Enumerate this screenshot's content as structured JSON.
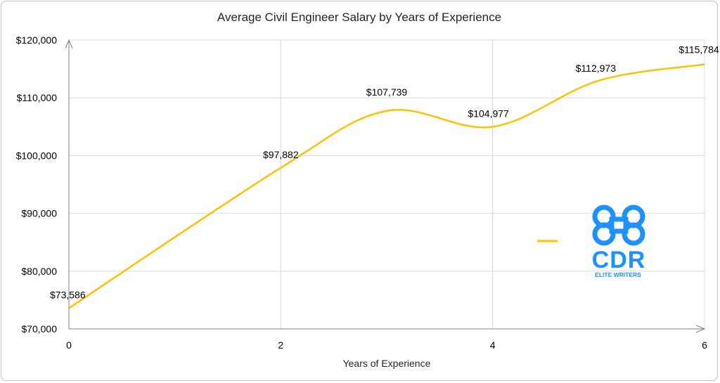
{
  "chart_data": {
    "type": "line",
    "title": "Average Civil Engineer Salary by Years of Experience",
    "xlabel": "Years of Experience",
    "ylabel": "",
    "xlim": [
      0,
      6
    ],
    "ylim": [
      70000,
      120000
    ],
    "x_ticks": [
      0,
      2,
      4,
      6
    ],
    "y_ticks": [
      70000,
      80000,
      90000,
      100000,
      110000,
      120000
    ],
    "y_tick_labels": [
      "$70,000",
      "$80,000",
      "$90,000",
      "$100,000",
      "$110,000",
      "$120,000"
    ],
    "grid": true,
    "smooth": true,
    "series": [
      {
        "color": "#FFC000",
        "points": [
          {
            "x": 0,
            "y": 73586,
            "label": "$73,586"
          },
          {
            "x": 2,
            "y": 97882,
            "label": "$97,882"
          },
          {
            "x": 3,
            "y": 107739,
            "label": "$107,739"
          },
          {
            "x": 4,
            "y": 104977,
            "label": "$104,977"
          },
          {
            "x": 5,
            "y": 112973,
            "label": "$112,973"
          },
          {
            "x": 6,
            "y": 115784,
            "label": "$115,784"
          }
        ]
      }
    ]
  },
  "logo": {
    "text": "CDR",
    "subtext": "ELITE WRITERS",
    "color": "#1E90FF",
    "icon": "command-key-icon"
  }
}
